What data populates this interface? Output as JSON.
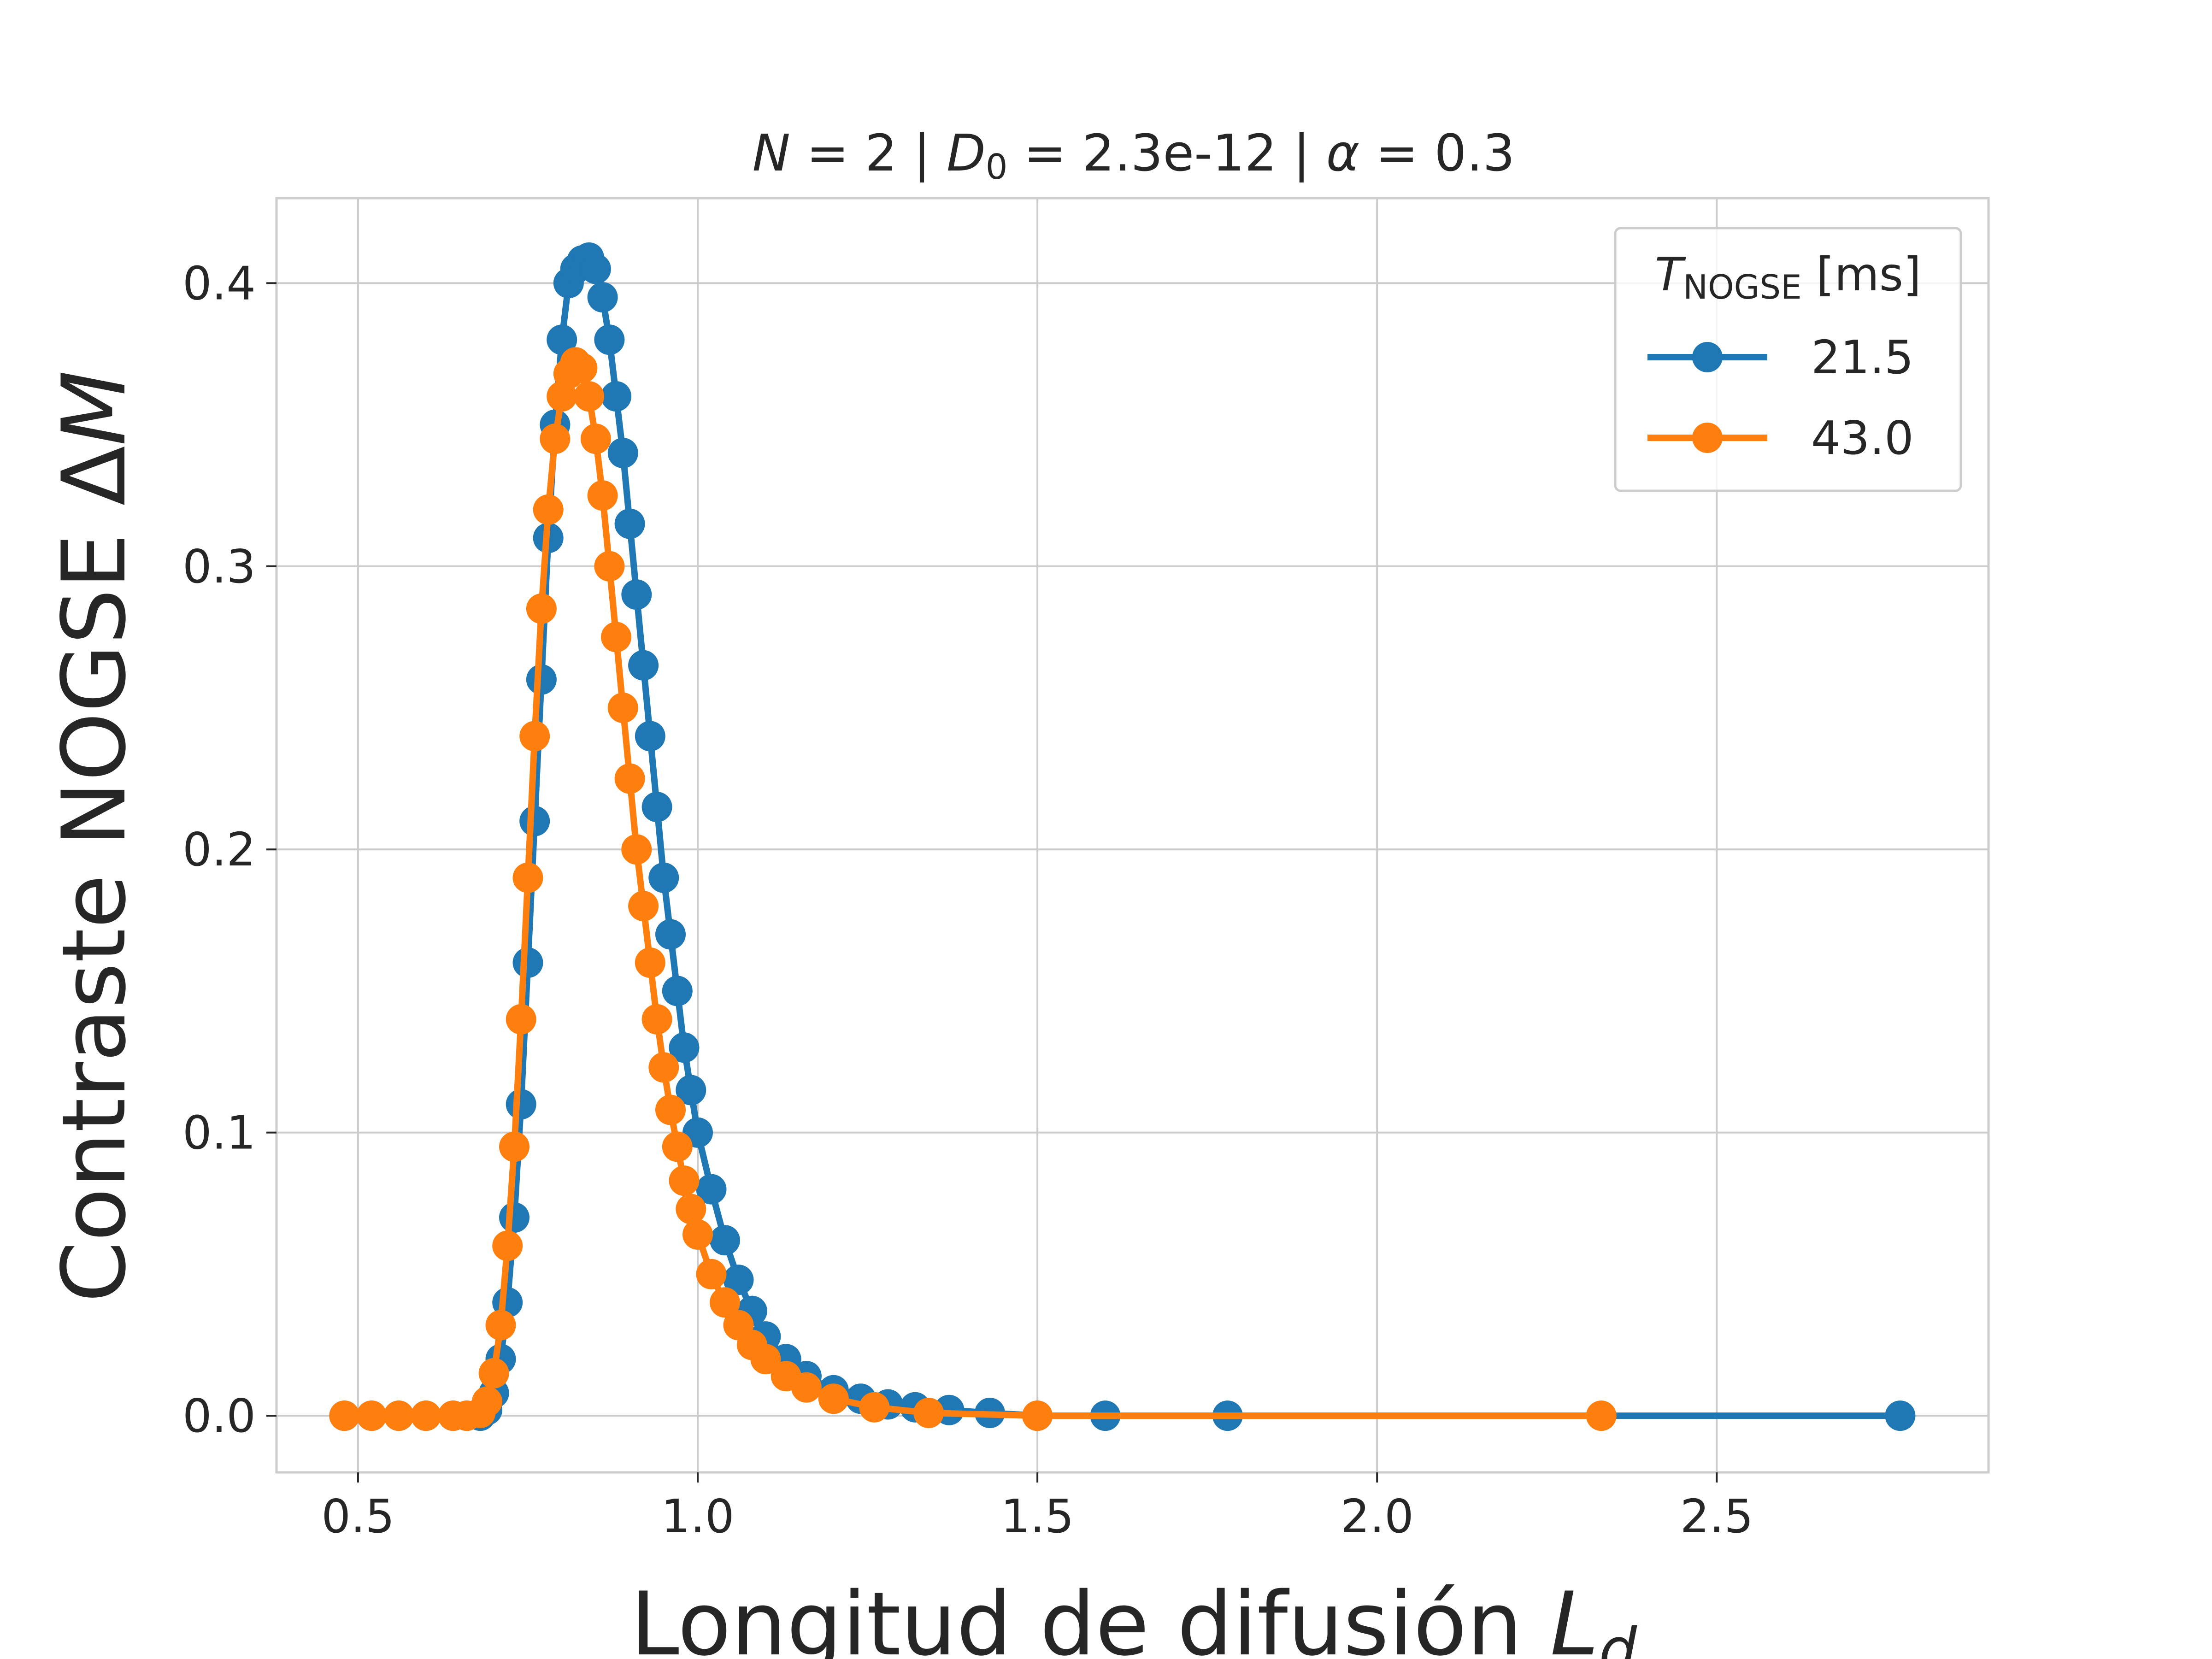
{
  "chart_data": {
    "type": "line",
    "title": {
      "p1_var": "N",
      "p1_rest": " = 2 | ",
      "p2_var": "D",
      "p2_sub": "0",
      "p2_rest": " = 2.3e-12 | ",
      "p3_var": "α",
      "p3_rest": " = 0.3"
    },
    "xlabel": {
      "text": "Longitud de difusión ",
      "var": "L",
      "sub": "d"
    },
    "ylabel": {
      "text": "Contraste NOGSE Δ",
      "var": "M"
    },
    "xlim": [
      0.38,
      2.9
    ],
    "ylim": [
      -0.02,
      0.43
    ],
    "xticks": [
      0.5,
      1.0,
      1.5,
      2.0,
      2.5
    ],
    "xtick_labels": [
      "0.5",
      "1.0",
      "1.5",
      "2.0",
      "2.5"
    ],
    "yticks": [
      0.0,
      0.1,
      0.2,
      0.3,
      0.4
    ],
    "ytick_labels": [
      "0.0",
      "0.1",
      "0.2",
      "0.3",
      "0.4"
    ],
    "grid": true,
    "legend": {
      "position": "top-right",
      "title_var": "T",
      "title_sub": "NOGSE",
      "title_rest": " [ms]"
    },
    "series": [
      {
        "name": "21.5",
        "color": "#1f77b4",
        "x": [
          0.48,
          0.52,
          0.56,
          0.6,
          0.64,
          0.66,
          0.68,
          0.69,
          0.7,
          0.71,
          0.72,
          0.73,
          0.74,
          0.75,
          0.76,
          0.77,
          0.78,
          0.79,
          0.8,
          0.81,
          0.82,
          0.83,
          0.84,
          0.85,
          0.86,
          0.87,
          0.88,
          0.89,
          0.9,
          0.91,
          0.92,
          0.93,
          0.94,
          0.95,
          0.96,
          0.97,
          0.98,
          0.99,
          1.0,
          1.02,
          1.04,
          1.06,
          1.08,
          1.1,
          1.13,
          1.16,
          1.2,
          1.24,
          1.28,
          1.32,
          1.37,
          1.43,
          1.5,
          1.6,
          1.78,
          2.77
        ],
        "y": [
          0.0,
          0.0,
          0.0,
          0.0,
          0.0,
          0.0,
          0.0,
          0.002,
          0.008,
          0.02,
          0.04,
          0.07,
          0.11,
          0.16,
          0.21,
          0.26,
          0.31,
          0.35,
          0.38,
          0.4,
          0.405,
          0.408,
          0.409,
          0.405,
          0.395,
          0.38,
          0.36,
          0.34,
          0.315,
          0.29,
          0.265,
          0.24,
          0.215,
          0.19,
          0.17,
          0.15,
          0.13,
          0.115,
          0.1,
          0.08,
          0.062,
          0.048,
          0.037,
          0.028,
          0.02,
          0.014,
          0.009,
          0.006,
          0.004,
          0.003,
          0.002,
          0.001,
          0.0,
          0.0,
          0.0,
          0.0
        ]
      },
      {
        "name": "43.0",
        "color": "#ff7f0e",
        "x": [
          0.48,
          0.52,
          0.56,
          0.6,
          0.64,
          0.66,
          0.68,
          0.69,
          0.7,
          0.71,
          0.72,
          0.73,
          0.74,
          0.75,
          0.76,
          0.77,
          0.78,
          0.79,
          0.8,
          0.81,
          0.82,
          0.83,
          0.84,
          0.85,
          0.86,
          0.87,
          0.88,
          0.89,
          0.9,
          0.91,
          0.92,
          0.93,
          0.94,
          0.95,
          0.96,
          0.97,
          0.98,
          0.99,
          1.0,
          1.02,
          1.04,
          1.06,
          1.08,
          1.1,
          1.13,
          1.16,
          1.2,
          1.26,
          1.34,
          1.5,
          2.33
        ],
        "y": [
          0.0,
          0.0,
          0.0,
          0.0,
          0.0,
          0.0,
          0.001,
          0.005,
          0.015,
          0.032,
          0.06,
          0.095,
          0.14,
          0.19,
          0.24,
          0.285,
          0.32,
          0.345,
          0.36,
          0.368,
          0.372,
          0.37,
          0.36,
          0.345,
          0.325,
          0.3,
          0.275,
          0.25,
          0.225,
          0.2,
          0.18,
          0.16,
          0.14,
          0.123,
          0.108,
          0.095,
          0.083,
          0.073,
          0.064,
          0.05,
          0.04,
          0.032,
          0.025,
          0.02,
          0.014,
          0.01,
          0.006,
          0.003,
          0.001,
          0.0,
          0.0
        ]
      }
    ]
  }
}
